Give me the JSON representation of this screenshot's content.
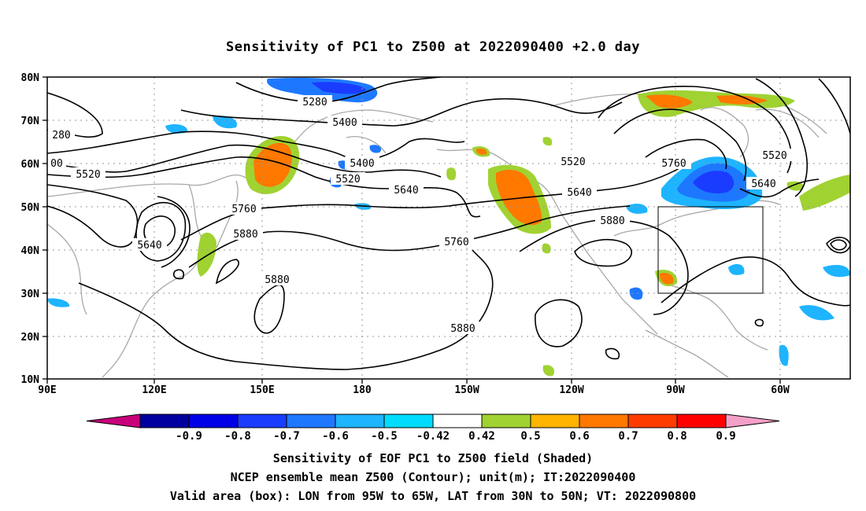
{
  "title": "Sensitivity of PC1 to Z500 at 2022090400 +2.0 day",
  "lat_labels": [
    "80N",
    "70N",
    "60N",
    "50N",
    "40N",
    "30N",
    "20N",
    "10N"
  ],
  "lon_labels": [
    "90E",
    "120E",
    "150E",
    "180",
    "150W",
    "120W",
    "90W",
    "60W"
  ],
  "contour_labels": {
    "c5280": "5280",
    "c280": "280",
    "c5400a": "5400",
    "c5400b": "5400",
    "c00": "00",
    "c5520a": "5520",
    "c5520b": "5520",
    "c5520c": "5520",
    "c5520d": "5520",
    "c5640a": "5640",
    "c5640b": "5640",
    "c5640c": "5640",
    "c5640d": "5640",
    "c5760a": "5760",
    "c5760b": "5760",
    "c5760c": "5760",
    "c5880a": "5880",
    "c5880b": "5880",
    "c5880c": "5880",
    "c5880d": "5880"
  },
  "colorbar": {
    "labels": [
      "-0.9",
      "-0.8",
      "-0.7",
      "-0.6",
      "-0.5",
      "-0.42",
      "0.42",
      "0.5",
      "0.6",
      "0.7",
      "0.8",
      "0.9"
    ],
    "colors": [
      "#c8007a",
      "#0000a0",
      "#0000e6",
      "#1a3cff",
      "#1e78ff",
      "#1eb4ff",
      "#00dcff",
      "#ffffff",
      "#a0d232",
      "#ffb400",
      "#ff7800",
      "#ff3c00",
      "#ff0000",
      "#f5a0c8"
    ]
  },
  "captions": {
    "line1": "Sensitivity of EOF PC1 to Z500 field (Shaded)",
    "line2": "NCEP ensemble mean Z500 (Contour); unit(m); IT:2022090400",
    "line3": "Valid area (box): LON from 95W to 65W, LAT from 30N to 50N; VT: 2022090800"
  }
}
